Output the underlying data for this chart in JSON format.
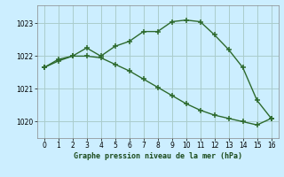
{
  "line1_x": [
    0,
    1,
    2,
    3,
    4,
    5,
    6,
    7,
    8,
    9,
    10,
    11,
    12,
    13,
    14,
    15,
    16
  ],
  "line1_y": [
    1021.65,
    1021.9,
    1022.0,
    1022.25,
    1022.0,
    1022.3,
    1022.45,
    1022.75,
    1022.75,
    1023.05,
    1023.1,
    1023.05,
    1022.65,
    1022.2,
    1021.65,
    1020.65,
    1020.1
  ],
  "line2_x": [
    0,
    1,
    2,
    3,
    4,
    5,
    6,
    7,
    8,
    9,
    10,
    11,
    12,
    13,
    14,
    15,
    16
  ],
  "line2_y": [
    1021.65,
    1021.85,
    1022.0,
    1022.0,
    1021.95,
    1021.75,
    1021.55,
    1021.3,
    1021.05,
    1020.8,
    1020.55,
    1020.35,
    1020.2,
    1020.1,
    1020.0,
    1019.9,
    1020.1
  ],
  "line_color": "#2d6a2d",
  "bg_color": "#cceeff",
  "grid_color": "#aacccc",
  "xlabel": "Graphe pression niveau de la mer (hPa)",
  "xlim": [
    -0.5,
    16.5
  ],
  "ylim": [
    1019.5,
    1023.55
  ],
  "yticks": [
    1020,
    1021,
    1022,
    1023
  ],
  "xticks": [
    0,
    1,
    2,
    3,
    4,
    5,
    6,
    7,
    8,
    9,
    10,
    11,
    12,
    13,
    14,
    15,
    16
  ],
  "marker": "+",
  "markersize": 4,
  "linewidth": 1.0
}
